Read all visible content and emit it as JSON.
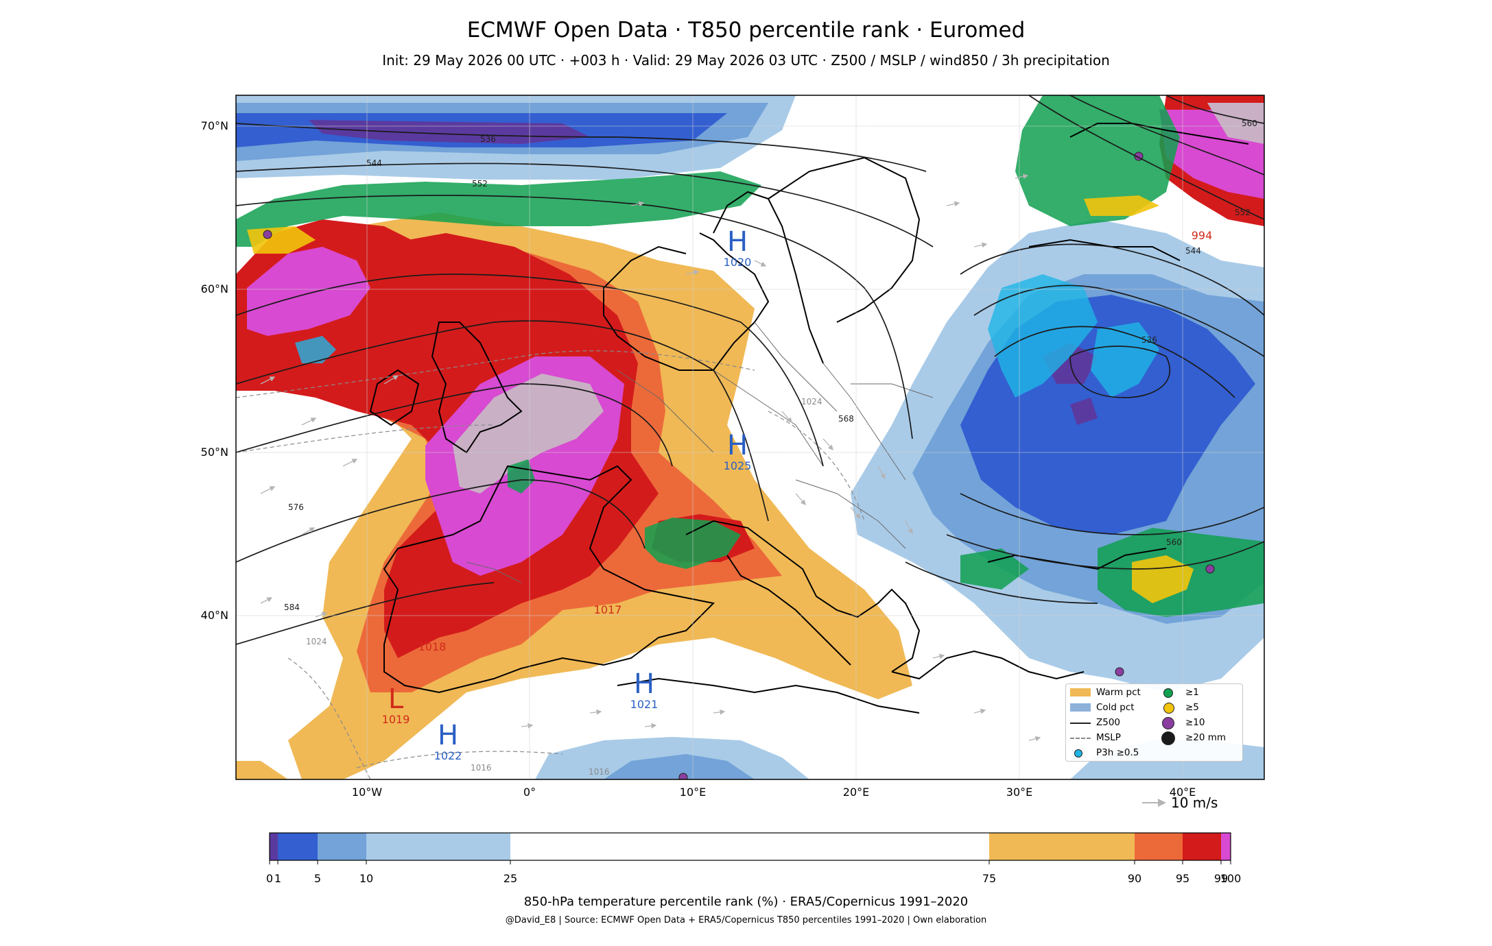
{
  "title": "ECMWF Open Data · T850 percentile rank · Euromed",
  "subtitle": "Init: 29 May 2026 00 UTC · +003 h · Valid: 29 May 2026 03 UTC · Z500 / MSLP / wind850 / 3h precipitation",
  "map": {
    "lat_ticks": [
      "70°N",
      "60°N",
      "50°N",
      "40°N"
    ],
    "lon_ticks": [
      "10°W",
      "0°",
      "10°E",
      "20°E",
      "30°E",
      "40°E"
    ],
    "z500_labels": [
      "536",
      "544",
      "552",
      "560",
      "568",
      "576",
      "584",
      "536",
      "544",
      "552",
      "560"
    ],
    "mslp_labels": [
      "1024",
      "1016",
      "1016",
      "1024"
    ],
    "pressure_systems": [
      {
        "type": "H",
        "value": "1020",
        "color": "#2a5fc4"
      },
      {
        "type": "H",
        "value": "1025",
        "color": "#2a5fc4"
      },
      {
        "type": "H",
        "value": "1021",
        "color": "#2a5fc4"
      },
      {
        "type": "H",
        "value": "1022",
        "color": "#2a5fc4"
      },
      {
        "type": "L",
        "value": "1019",
        "color": "#d12a1c"
      },
      {
        "type": "",
        "value": "1018",
        "color": "#d12a1c"
      },
      {
        "type": "",
        "value": "1017",
        "color": "#d12a1c"
      },
      {
        "type": "",
        "value": "994",
        "color": "#d12a1c"
      }
    ],
    "wind_reference": "10 m/s"
  },
  "legend": {
    "items": [
      {
        "label": "Warm pct",
        "kind": "patch",
        "color": "#f0b955"
      },
      {
        "label": "Cold pct",
        "kind": "patch",
        "color": "#8db1d9"
      },
      {
        "label": "Z500",
        "kind": "line",
        "color": "#222222"
      },
      {
        "label": "MSLP",
        "kind": "dash",
        "color": "#8a8a8a"
      },
      {
        "label": "P3h ≥0.5",
        "kind": "dot",
        "color": "#1fb5e6"
      },
      {
        "label": "≥1",
        "kind": "dot",
        "color": "#10a050"
      },
      {
        "label": "≥5",
        "kind": "dot",
        "color": "#f2c40c"
      },
      {
        "label": "≥10",
        "kind": "dot",
        "color": "#8a3fa0"
      },
      {
        "label": "≥20 mm",
        "kind": "dot",
        "color": "#1a1a1a"
      }
    ]
  },
  "colorbar": {
    "label": "850-hPa temperature percentile rank (%) · ERA5/Copernicus 1991–2020",
    "ticks": [
      "0",
      "1",
      "5",
      "10",
      "25",
      "75",
      "90",
      "95",
      "99",
      "100"
    ],
    "bins": [
      {
        "from": 0,
        "to": 1,
        "color": "#5b3aa0"
      },
      {
        "from": 1,
        "to": 5,
        "color": "#335fd1"
      },
      {
        "from": 5,
        "to": 10,
        "color": "#73a3d8"
      },
      {
        "from": 10,
        "to": 25,
        "color": "#a9cbe8"
      },
      {
        "from": 25,
        "to": 75,
        "color": "#ffffff"
      },
      {
        "from": 75,
        "to": 90,
        "color": "#f0b955"
      },
      {
        "from": 90,
        "to": 95,
        "color": "#ec6a3a"
      },
      {
        "from": 95,
        "to": 99,
        "color": "#d41b1b"
      },
      {
        "from": 99,
        "to": 100,
        "color": "#d84ad1"
      }
    ]
  },
  "credit": "@David_E8 | Source: ECMWF Open Data + ERA5/Copernicus T850 percentiles 1991–2020 | Own elaboration"
}
